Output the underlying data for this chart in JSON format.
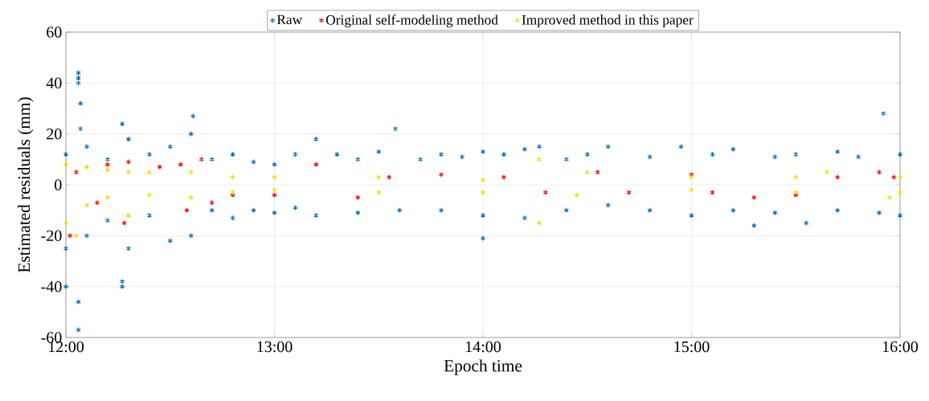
{
  "chart_data": {
    "type": "scatter",
    "xlabel": "Epoch time",
    "ylabel": "Estimated residuals (mm)",
    "xlim": [
      12,
      16
    ],
    "ylim": [
      -60,
      60
    ],
    "xticks": [
      {
        "value": 12,
        "label": "12:00"
      },
      {
        "value": 13,
        "label": "13:00"
      },
      {
        "value": 14,
        "label": "14:00"
      },
      {
        "value": 15,
        "label": "15:00"
      },
      {
        "value": 16,
        "label": "16:00"
      }
    ],
    "yticks": [
      -60,
      -40,
      -20,
      0,
      20,
      40,
      60
    ],
    "grid": true,
    "legend": "top",
    "marker": "cross",
    "series": [
      {
        "name": "Raw",
        "color": "#0072bd",
        "x": [
          12.06,
          12.06,
          12.06,
          12.07,
          12.07,
          12.0,
          12.06,
          12.06,
          12.27,
          12.27,
          12.27,
          12.61,
          13.58,
          14.0,
          14.27,
          15.92,
          15.3,
          15.55,
          12.0,
          12.1,
          12.2,
          12.3,
          12.4,
          12.5,
          12.6,
          12.7,
          12.8,
          12.9,
          13.0,
          13.1,
          13.2,
          13.3,
          13.4,
          13.5,
          13.7,
          13.8,
          13.9,
          14.0,
          14.1,
          14.2,
          14.4,
          14.5,
          14.6,
          14.8,
          14.95,
          15.1,
          15.2,
          15.4,
          15.5,
          15.7,
          15.8,
          16.0,
          12.0,
          12.1,
          12.2,
          12.3,
          12.4,
          12.5,
          12.6,
          12.7,
          12.8,
          12.9,
          13.0,
          13.1,
          13.2,
          13.4,
          13.6,
          13.8,
          14.0,
          14.2,
          14.4,
          14.6,
          14.8,
          15.0,
          15.2,
          15.4,
          15.7,
          15.9,
          16.0
        ],
        "values": [
          44,
          42,
          40,
          32,
          22,
          -40,
          -46,
          -57,
          -38,
          -40,
          24,
          27,
          22,
          -21,
          15,
          28,
          -16,
          -15,
          12,
          15,
          10,
          18,
          12,
          15,
          20,
          10,
          12,
          9,
          8,
          12,
          18,
          12,
          10,
          13,
          10,
          12,
          11,
          13,
          12,
          14,
          10,
          12,
          15,
          11,
          15,
          12,
          14,
          11,
          12,
          13,
          11,
          12,
          -25,
          -20,
          -14,
          -25,
          -12,
          -22,
          -20,
          -10,
          -13,
          -10,
          -11,
          -9,
          -12,
          -11,
          -10,
          -10,
          -12,
          -13,
          -10,
          -8,
          -10,
          -12,
          -10,
          -11,
          -10,
          -11,
          -12
        ]
      },
      {
        "name": "Original self-modeling method",
        "color": "#ff0000",
        "x": [
          12.02,
          12.05,
          12.15,
          12.2,
          12.3,
          12.28,
          12.45,
          12.55,
          12.58,
          12.65,
          12.7,
          12.8,
          13.0,
          13.2,
          13.4,
          13.55,
          13.8,
          14.1,
          14.3,
          14.55,
          14.7,
          15.0,
          15.1,
          15.3,
          15.5,
          15.7,
          15.9,
          15.97
        ],
        "values": [
          -20,
          5,
          -7,
          8,
          9,
          -15,
          7,
          8,
          -10,
          10,
          -7,
          -4,
          -4,
          8,
          -5,
          3,
          4,
          3,
          -3,
          5,
          -3,
          4,
          -3,
          -5,
          -4,
          3,
          5,
          3
        ]
      },
      {
        "name": "Improved method in this paper",
        "color": "#ffd700",
        "x": [
          12.0,
          12.0,
          12.05,
          12.1,
          12.1,
          12.2,
          12.2,
          12.3,
          12.3,
          12.4,
          12.4,
          12.6,
          12.6,
          12.8,
          12.8,
          13.0,
          13.0,
          13.5,
          13.5,
          14.0,
          14.0,
          14.27,
          14.27,
          14.45,
          14.5,
          15.0,
          15.0,
          15.5,
          15.5,
          15.65,
          15.95,
          16.0,
          16.0
        ],
        "values": [
          -15,
          8,
          -20,
          7,
          -8,
          6,
          -5,
          5,
          -12,
          5,
          -4,
          5,
          -5,
          3,
          -3,
          3,
          -2,
          3,
          -3,
          2,
          -3,
          -15,
          10,
          -4,
          5,
          3,
          -2,
          3,
          -3,
          5,
          -5,
          3,
          -3
        ]
      }
    ]
  }
}
